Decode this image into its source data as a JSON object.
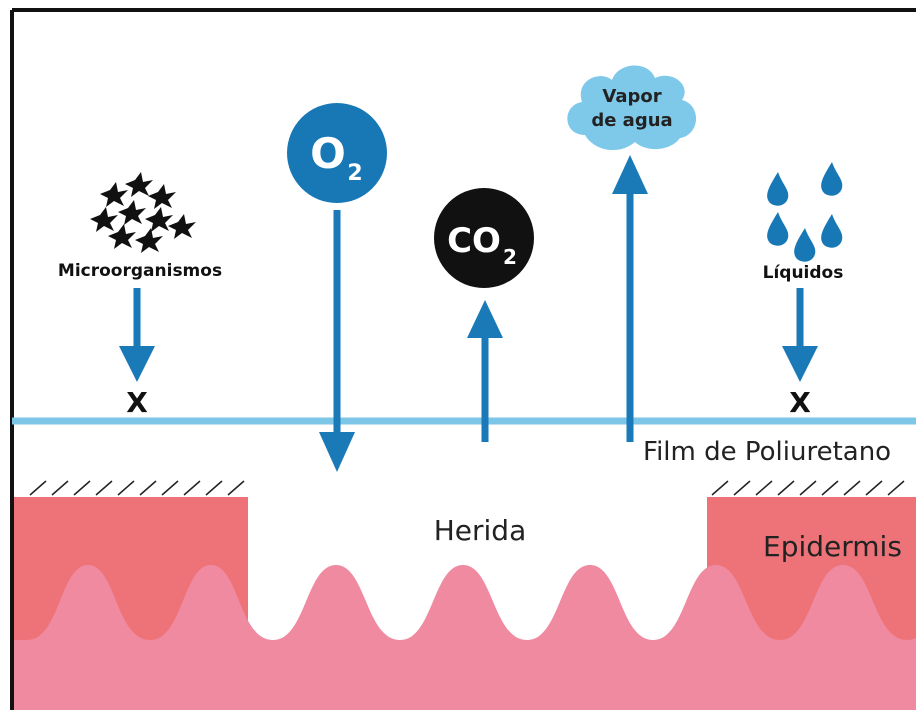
{
  "labels": {
    "microorganisms": "Microorganismos",
    "o2": {
      "main": "O",
      "sub": "2"
    },
    "co2": {
      "main": "CO",
      "sub": "2"
    },
    "vapor": {
      "line1": "Vapor",
      "line2": "de agua"
    },
    "liquids": "Líquidos",
    "blocked_left": "X",
    "blocked_right": "X",
    "film": "Film de Poliuretano",
    "wound": "Herida",
    "epidermis": "Epidermis"
  }
}
